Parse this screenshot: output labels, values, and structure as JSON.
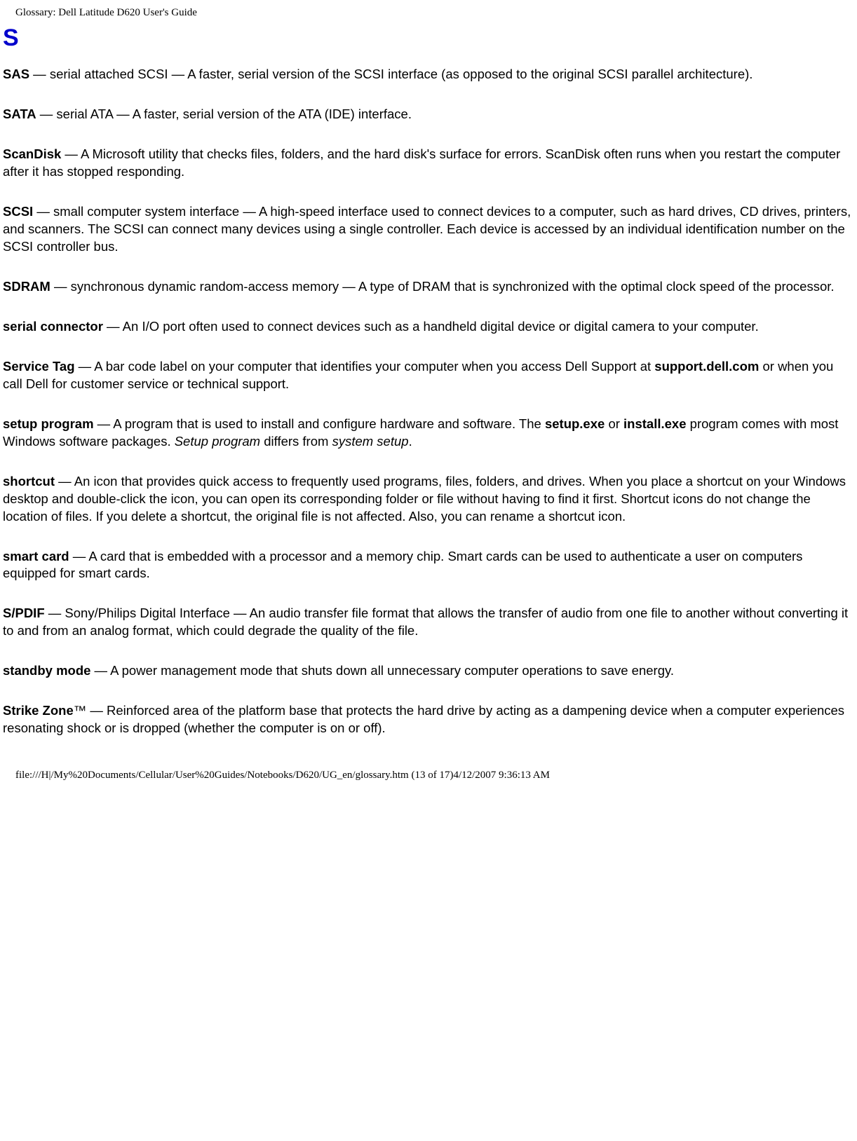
{
  "header": {
    "title": "Glossary: Dell Latitude D620 User's Guide"
  },
  "section": {
    "letter": "S"
  },
  "entries": {
    "sas": {
      "term": "SAS",
      "body1": " — serial attached SCSI — A faster, serial version of the SCSI interface (as opposed to the original SCSI parallel architecture)."
    },
    "sata": {
      "term": "SATA",
      "body1": " — serial ATA — A faster, serial version of the ATA (IDE) interface."
    },
    "scandisk": {
      "term": "ScanDisk",
      "body1": " — A Microsoft utility that checks files, folders, and the hard disk's surface for errors. ScanDisk often runs when you restart the computer after it has stopped responding."
    },
    "scsi": {
      "term": "SCSI",
      "body1": " — small computer system interface — A high-speed interface used to connect devices to a computer, such as hard drives, CD drives, printers, and scanners. The SCSI can connect many devices using a single controller. Each device is accessed by an individual identification number on the SCSI controller bus."
    },
    "sdram": {
      "term": "SDRAM",
      "body1": " — synchronous dynamic random-access memory — A type of DRAM that is synchronized with the optimal clock speed of the processor."
    },
    "serial_connector": {
      "term": "serial connector",
      "body1": " — An I/O port often used to connect devices such as a handheld digital device or digital camera to your computer."
    },
    "service_tag": {
      "term": "Service Tag",
      "body1": " — A bar code label on your computer that identifies your computer when you access Dell Support at ",
      "bold1": "support.dell.com",
      "body2": " or when you call Dell for customer service or technical support."
    },
    "setup_program": {
      "term": "setup program",
      "body1": " — A program that is used to install and configure hardware and software. The ",
      "bold1": "setup.exe",
      "body2": " or ",
      "bold2": "install.exe",
      "body3": " program comes with most Windows software packages. ",
      "ital1": "Setup program",
      "body4": " differs from ",
      "ital2": "system setup",
      "body5": "."
    },
    "shortcut": {
      "term": "shortcut",
      "body1": " — An icon that provides quick access to frequently used programs, files, folders, and drives. When you place a shortcut on your Windows desktop and double-click the icon, you can open its corresponding folder or file without having to find it first. Shortcut icons do not change the location of files. If you delete a shortcut, the original file is not affected. Also, you can rename a shortcut icon."
    },
    "smart_card": {
      "term": "smart card",
      "body1": " — A card that is embedded with a processor and a memory chip. Smart cards can be used to authenticate a user on computers equipped for smart cards."
    },
    "spdif": {
      "term": "S/PDIF",
      "body1": " — Sony/Philips Digital Interface — An audio transfer file format that allows the transfer of audio from one file to another without converting it to and from an analog format, which could degrade the quality of the file."
    },
    "standby_mode": {
      "term": "standby mode",
      "body1": " — A power management mode that shuts down all unnecessary computer operations to save energy."
    },
    "strike_zone": {
      "term": "Strike Zone",
      "tm": "™",
      "body1": " — Reinforced area of the platform base that protects the hard drive by acting as a dampening device when a computer experiences resonating shock or is dropped (whether the computer is on or off)."
    }
  },
  "footer": {
    "text": "file:///H|/My%20Documents/Cellular/User%20Guides/Notebooks/D620/UG_en/glossary.htm (13 of 17)4/12/2007 9:36:13 AM"
  }
}
